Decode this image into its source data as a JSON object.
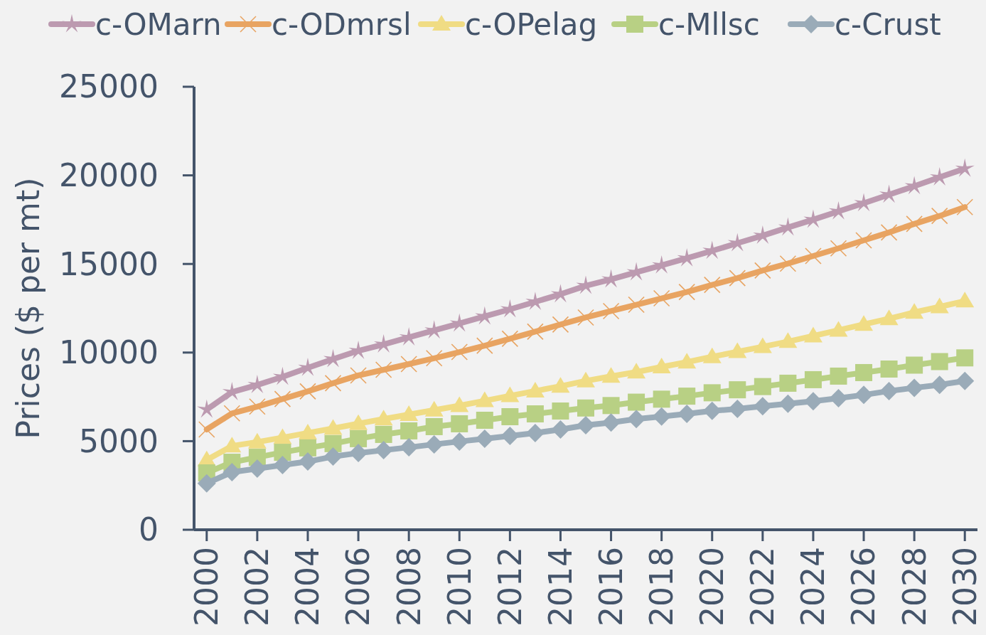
{
  "chart_data": {
    "type": "line",
    "ylabel": "Prices ($ per mt)",
    "x": [
      2000,
      2001,
      2002,
      2003,
      2004,
      2005,
      2006,
      2007,
      2008,
      2009,
      2010,
      2011,
      2012,
      2013,
      2014,
      2015,
      2016,
      2017,
      2018,
      2019,
      2020,
      2021,
      2022,
      2023,
      2024,
      2025,
      2026,
      2027,
      2028,
      2029,
      2030
    ],
    "xlim": [
      1999.5,
      2030.5
    ],
    "xticks": [
      2000,
      2002,
      2004,
      2006,
      2008,
      2010,
      2012,
      2014,
      2016,
      2018,
      2020,
      2022,
      2024,
      2026,
      2028,
      2030
    ],
    "ylim": [
      0,
      25000
    ],
    "yticks": [
      0,
      5000,
      10000,
      15000,
      20000,
      25000
    ],
    "grid": false,
    "legend": "top",
    "line_style": "solid",
    "series": [
      {
        "name": "c-OMarn",
        "color": "#bc9ab0",
        "marker": "star",
        "values": [
          6780,
          7770,
          8170,
          8630,
          9140,
          9630,
          10100,
          10460,
          10860,
          11250,
          11640,
          12040,
          12440,
          12860,
          13290,
          13770,
          14130,
          14530,
          14920,
          15320,
          15740,
          16170,
          16600,
          17060,
          17500,
          17970,
          18430,
          18910,
          19390,
          19890,
          20380
        ]
      },
      {
        "name": "c-ODmrsl",
        "color": "#e8a462",
        "marker": "cross",
        "values": [
          5660,
          6570,
          6950,
          7380,
          7810,
          8270,
          8710,
          9030,
          9350,
          9680,
          10030,
          10390,
          10780,
          11180,
          11580,
          11980,
          12340,
          12700,
          13060,
          13420,
          13820,
          14200,
          14630,
          15020,
          15450,
          15880,
          16330,
          16780,
          17260,
          17710,
          18210
        ]
      },
      {
        "name": "c-OPelag",
        "color": "#f0dc84",
        "marker": "triangle",
        "values": [
          3940,
          4730,
          4950,
          5200,
          5460,
          5720,
          5990,
          6250,
          6500,
          6750,
          7000,
          7280,
          7560,
          7830,
          8100,
          8400,
          8660,
          8900,
          9190,
          9460,
          9760,
          10050,
          10330,
          10620,
          10940,
          11260,
          11590,
          11910,
          12270,
          12580,
          12910
        ]
      },
      {
        "name": "c-Mllsc",
        "color": "#b8d084",
        "marker": "square",
        "values": [
          3210,
          3810,
          4090,
          4370,
          4620,
          4860,
          5140,
          5380,
          5580,
          5820,
          5980,
          6180,
          6380,
          6540,
          6700,
          6870,
          7010,
          7200,
          7370,
          7540,
          7730,
          7900,
          8080,
          8270,
          8470,
          8670,
          8870,
          9070,
          9290,
          9490,
          9700
        ]
      },
      {
        "name": "c-Crust",
        "color": "#9aabb8",
        "marker": "diamond",
        "values": [
          2620,
          3250,
          3450,
          3650,
          3850,
          4130,
          4330,
          4490,
          4650,
          4820,
          4980,
          5140,
          5300,
          5460,
          5660,
          5900,
          6050,
          6250,
          6390,
          6540,
          6710,
          6820,
          6970,
          7110,
          7250,
          7420,
          7610,
          7830,
          8010,
          8180,
          8400
        ]
      }
    ]
  }
}
